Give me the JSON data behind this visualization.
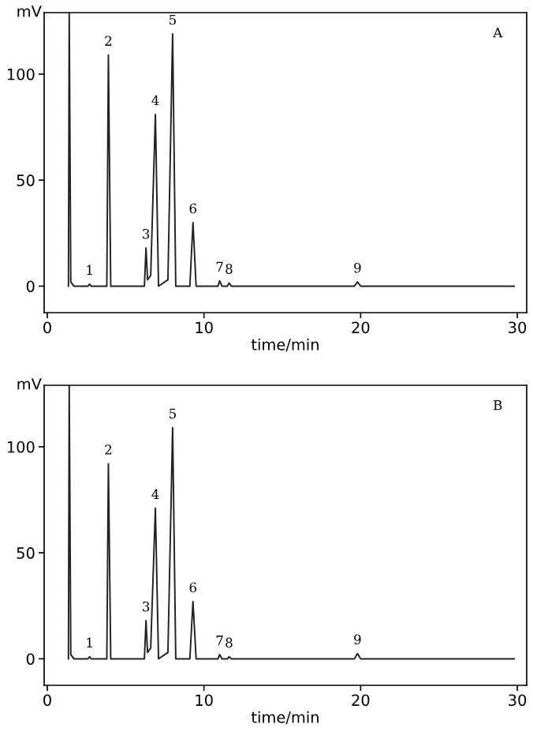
{
  "chart_data": [
    {
      "type": "line",
      "ylabel": "mV",
      "xlabel": "time/min",
      "xlim": [
        -0.2,
        30.6
      ],
      "ylim": [
        -12.5,
        129
      ],
      "xticks": [
        0,
        10,
        20,
        30
      ],
      "yticks": [
        0,
        50,
        100
      ],
      "marker": "none",
      "line_style": "solid",
      "series": [
        {
          "color": "#222222",
          "x": [
            1.35,
            1.4,
            1.5,
            1.7,
            2.6,
            2.7,
            2.8,
            3.8,
            3.9,
            4.05,
            6.2,
            6.3,
            6.4,
            6.6,
            6.9,
            7.1,
            7.7,
            8.0,
            8.2,
            9.1,
            9.3,
            9.5,
            10.9,
            11.0,
            11.15,
            11.5,
            11.6,
            11.75,
            19.6,
            19.8,
            20.0,
            29.8
          ],
          "values": [
            0,
            129,
            2,
            0,
            0,
            1,
            0,
            0,
            109,
            0,
            0,
            18,
            3,
            5,
            81,
            0,
            3,
            119,
            0,
            0,
            30,
            0,
            0,
            2.5,
            0,
            0,
            1.5,
            0,
            0,
            2,
            0,
            0
          ]
        }
      ],
      "annotations": [
        "A",
        {
          "text": "1",
          "x": 2.7,
          "y": 1
        },
        {
          "text": "2",
          "x": 3.9,
          "y": 109
        },
        {
          "text": "3",
          "x": 6.3,
          "y": 18
        },
        {
          "text": "4",
          "x": 6.9,
          "y": 81
        },
        {
          "text": "5",
          "x": 8.0,
          "y": 119
        },
        {
          "text": "6",
          "x": 9.3,
          "y": 30
        },
        {
          "text": "7",
          "x": 11.0,
          "y": 2.5
        },
        {
          "text": "8",
          "x": 11.6,
          "y": 1.5
        },
        {
          "text": "9",
          "x": 19.8,
          "y": 2
        }
      ]
    },
    {
      "type": "line",
      "ylabel": "mV",
      "xlabel": "time/min",
      "xlim": [
        -0.2,
        30.6
      ],
      "ylim": [
        -12.5,
        129
      ],
      "xticks": [
        0,
        10,
        20,
        30
      ],
      "yticks": [
        0,
        50,
        100
      ],
      "marker": "none",
      "line_style": "solid",
      "series": [
        {
          "color": "#222222",
          "x": [
            1.35,
            1.4,
            1.5,
            1.7,
            2.6,
            2.7,
            2.8,
            3.8,
            3.9,
            4.05,
            6.2,
            6.3,
            6.4,
            6.6,
            6.9,
            7.1,
            7.7,
            8.0,
            8.2,
            9.1,
            9.3,
            9.5,
            10.9,
            11.0,
            11.15,
            11.5,
            11.6,
            11.75,
            19.6,
            19.8,
            20.0,
            29.8
          ],
          "values": [
            0,
            129,
            2,
            0,
            0,
            1,
            0,
            0,
            92,
            0,
            0,
            18,
            3,
            5,
            71,
            0,
            3,
            109,
            0,
            0,
            27,
            0,
            0,
            2,
            0,
            0,
            1,
            0,
            0,
            2.5,
            0,
            0
          ]
        }
      ],
      "annotations": [
        "B",
        {
          "text": "1",
          "x": 2.7,
          "y": 1
        },
        {
          "text": "2",
          "x": 3.9,
          "y": 92
        },
        {
          "text": "3",
          "x": 6.3,
          "y": 18
        },
        {
          "text": "4",
          "x": 6.9,
          "y": 71
        },
        {
          "text": "5",
          "x": 8.0,
          "y": 109
        },
        {
          "text": "6",
          "x": 9.3,
          "y": 27
        },
        {
          "text": "7",
          "x": 11.0,
          "y": 2
        },
        {
          "text": "8",
          "x": 11.6,
          "y": 1
        },
        {
          "text": "9",
          "x": 19.8,
          "y": 2.5
        }
      ]
    }
  ]
}
